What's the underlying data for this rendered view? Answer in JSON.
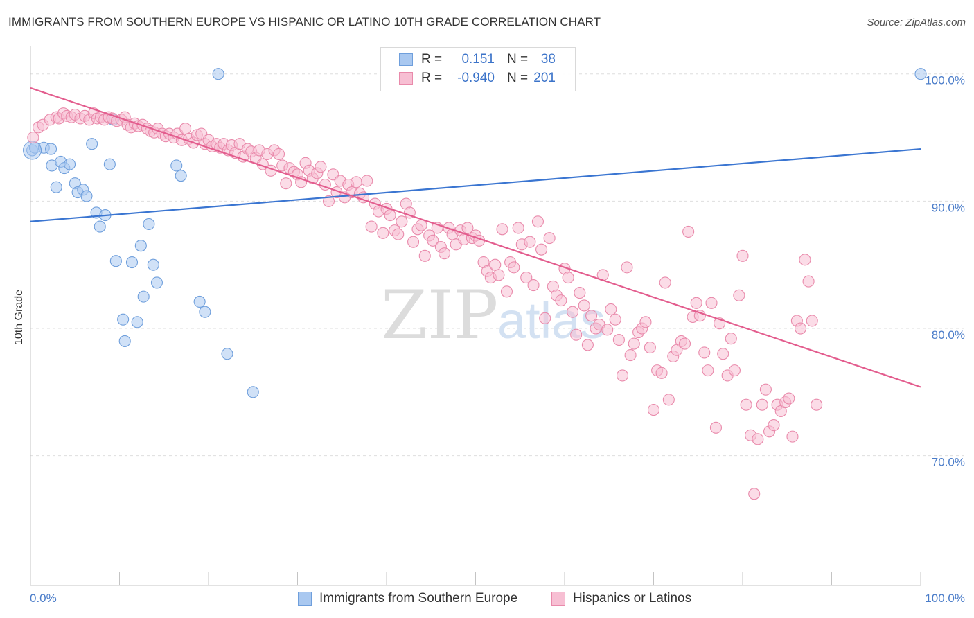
{
  "header": {
    "title": "IMMIGRANTS FROM SOUTHERN EUROPE VS HISPANIC OR LATINO 10TH GRADE CORRELATION CHART",
    "source": "Source: ZipAtlas.com"
  },
  "watermark": {
    "zip": "ZIP",
    "atlas": "atlas"
  },
  "legend": {
    "rows": [
      {
        "r_label": "R =",
        "r_value": "0.151",
        "n_label": "N =",
        "n_value": "38",
        "color": "#a9c8f0",
        "border": "#6f9fdc"
      },
      {
        "r_label": "R =",
        "r_value": "-0.940",
        "n_label": "N =",
        "n_value": "201",
        "color": "#f7bfd3",
        "border": "#e98aab"
      }
    ]
  },
  "bottom_legend": {
    "items": [
      {
        "label": "Immigrants from Southern Europe",
        "color": "#a9c8f0",
        "border": "#6f9fdc"
      },
      {
        "label": "Hispanics or Latinos",
        "color": "#f7bfd3",
        "border": "#e98aab"
      }
    ]
  },
  "chart_data": {
    "type": "scatter",
    "title": "IMMIGRANTS FROM SOUTHERN EUROPE VS HISPANIC OR LATINO 10TH GRADE CORRELATION CHART",
    "ylabel": "10th Grade",
    "xlabel": "",
    "xlim": [
      0,
      100
    ],
    "ylim": [
      59.8,
      102
    ],
    "x_tick_labels": [
      "0.0%",
      "100.0%"
    ],
    "y_ticks": [
      {
        "value": 100,
        "label": "100.0%"
      },
      {
        "value": 90,
        "label": "90.0%"
      },
      {
        "value": 80,
        "label": "80.0%"
      },
      {
        "value": 70,
        "label": "70.0%"
      }
    ],
    "grid": "horizontal dashed",
    "series": [
      {
        "name": "Immigrants from Southern Europe",
        "color": "#a9c8f0",
        "edge": "#6f9fdc",
        "line_color": "#3a75d1",
        "trend": {
          "x": [
            0,
            100
          ],
          "y": [
            88.4,
            94.1
          ]
        },
        "points": [
          [
            0.2,
            94.0
          ],
          [
            0.5,
            94.2
          ],
          [
            1.5,
            94.2
          ],
          [
            2.3,
            94.1
          ],
          [
            2.4,
            92.8
          ],
          [
            2.9,
            91.1
          ],
          [
            3.4,
            93.1
          ],
          [
            3.8,
            92.6
          ],
          [
            4.4,
            92.9
          ],
          [
            5.0,
            91.4
          ],
          [
            5.3,
            90.7
          ],
          [
            5.9,
            90.9
          ],
          [
            6.3,
            90.4
          ],
          [
            6.9,
            94.5
          ],
          [
            7.4,
            89.1
          ],
          [
            7.8,
            88.0
          ],
          [
            8.4,
            88.9
          ],
          [
            8.9,
            92.9
          ],
          [
            9.3,
            96.4
          ],
          [
            9.6,
            85.3
          ],
          [
            10.4,
            80.7
          ],
          [
            10.6,
            79.0
          ],
          [
            11.4,
            85.2
          ],
          [
            12.0,
            80.5
          ],
          [
            12.4,
            86.5
          ],
          [
            12.7,
            82.5
          ],
          [
            13.3,
            88.2
          ],
          [
            13.8,
            85.0
          ],
          [
            14.2,
            83.6
          ],
          [
            16.4,
            92.8
          ],
          [
            16.9,
            92.0
          ],
          [
            19.0,
            82.1
          ],
          [
            19.6,
            81.3
          ],
          [
            21.1,
            100.0
          ],
          [
            22.1,
            78.0
          ],
          [
            25.0,
            75.0
          ],
          [
            100.0,
            100.0
          ]
        ]
      },
      {
        "name": "Hispanics or Latinos",
        "color": "#f7bfd3",
        "edge": "#e98aab",
        "line_color": "#e35d8e",
        "trend": {
          "x": [
            0,
            100
          ],
          "y": [
            98.9,
            75.4
          ]
        },
        "points": [
          [
            0.3,
            95.0
          ],
          [
            0.9,
            95.8
          ],
          [
            1.4,
            96.0
          ],
          [
            2.2,
            96.4
          ],
          [
            2.9,
            96.6
          ],
          [
            3.2,
            96.5
          ],
          [
            3.7,
            96.9
          ],
          [
            4.1,
            96.7
          ],
          [
            4.6,
            96.6
          ],
          [
            5.0,
            96.8
          ],
          [
            5.6,
            96.5
          ],
          [
            6.1,
            96.7
          ],
          [
            6.6,
            96.4
          ],
          [
            7.1,
            96.9
          ],
          [
            7.5,
            96.5
          ],
          [
            7.9,
            96.6
          ],
          [
            8.3,
            96.4
          ],
          [
            8.8,
            96.6
          ],
          [
            9.2,
            96.5
          ],
          [
            9.7,
            96.3
          ],
          [
            10.2,
            96.4
          ],
          [
            10.6,
            96.6
          ],
          [
            10.9,
            96.0
          ],
          [
            11.3,
            95.8
          ],
          [
            11.7,
            96.1
          ],
          [
            12.1,
            95.9
          ],
          [
            12.6,
            96.0
          ],
          [
            13.1,
            95.7
          ],
          [
            13.5,
            95.5
          ],
          [
            13.9,
            95.4
          ],
          [
            14.3,
            95.7
          ],
          [
            14.8,
            95.3
          ],
          [
            15.2,
            95.1
          ],
          [
            15.6,
            95.3
          ],
          [
            16.1,
            95.0
          ],
          [
            16.5,
            95.3
          ],
          [
            17.0,
            94.8
          ],
          [
            17.4,
            95.7
          ],
          [
            17.8,
            94.9
          ],
          [
            18.3,
            94.6
          ],
          [
            18.7,
            95.2
          ],
          [
            19.2,
            95.3
          ],
          [
            19.6,
            94.5
          ],
          [
            20.0,
            94.8
          ],
          [
            20.4,
            94.3
          ],
          [
            20.9,
            94.5
          ],
          [
            21.3,
            94.2
          ],
          [
            21.7,
            94.5
          ],
          [
            22.2,
            94.0
          ],
          [
            22.6,
            94.4
          ],
          [
            23.0,
            93.8
          ],
          [
            23.5,
            94.5
          ],
          [
            23.9,
            93.5
          ],
          [
            24.4,
            94.1
          ],
          [
            24.8,
            93.9
          ],
          [
            25.3,
            93.4
          ],
          [
            25.7,
            94.0
          ],
          [
            26.1,
            92.9
          ],
          [
            26.6,
            93.7
          ],
          [
            27.0,
            92.4
          ],
          [
            27.4,
            94.0
          ],
          [
            27.9,
            93.7
          ],
          [
            28.3,
            92.8
          ],
          [
            28.7,
            91.4
          ],
          [
            29.1,
            92.6
          ],
          [
            29.6,
            92.3
          ],
          [
            30.0,
            92.1
          ],
          [
            30.4,
            91.5
          ],
          [
            30.9,
            93.0
          ],
          [
            31.3,
            92.4
          ],
          [
            31.7,
            91.8
          ],
          [
            32.2,
            92.2
          ],
          [
            32.6,
            92.7
          ],
          [
            33.1,
            91.3
          ],
          [
            33.5,
            90.0
          ],
          [
            34.0,
            92.1
          ],
          [
            34.4,
            90.7
          ],
          [
            34.8,
            91.6
          ],
          [
            35.3,
            90.3
          ],
          [
            35.7,
            91.3
          ],
          [
            36.1,
            90.7
          ],
          [
            36.6,
            91.5
          ],
          [
            37.0,
            90.6
          ],
          [
            37.4,
            90.3
          ],
          [
            37.8,
            91.6
          ],
          [
            38.3,
            88.0
          ],
          [
            38.7,
            89.8
          ],
          [
            39.1,
            89.2
          ],
          [
            39.6,
            87.5
          ],
          [
            40.0,
            89.4
          ],
          [
            40.4,
            88.9
          ],
          [
            40.9,
            87.7
          ],
          [
            41.3,
            87.4
          ],
          [
            41.7,
            88.4
          ],
          [
            42.2,
            89.8
          ],
          [
            42.6,
            89.1
          ],
          [
            43.0,
            86.8
          ],
          [
            43.5,
            87.8
          ],
          [
            43.9,
            88.1
          ],
          [
            44.3,
            85.7
          ],
          [
            44.8,
            87.3
          ],
          [
            45.2,
            86.9
          ],
          [
            45.7,
            87.9
          ],
          [
            46.1,
            86.4
          ],
          [
            46.5,
            85.9
          ],
          [
            47.0,
            87.9
          ],
          [
            47.4,
            87.4
          ],
          [
            47.8,
            86.6
          ],
          [
            48.3,
            87.7
          ],
          [
            48.7,
            87.0
          ],
          [
            49.1,
            87.9
          ],
          [
            49.6,
            87.1
          ],
          [
            50.0,
            87.3
          ],
          [
            50.4,
            86.9
          ],
          [
            50.9,
            85.2
          ],
          [
            51.3,
            84.5
          ],
          [
            51.7,
            84.0
          ],
          [
            52.2,
            85.0
          ],
          [
            52.6,
            84.2
          ],
          [
            53.0,
            87.8
          ],
          [
            53.5,
            82.9
          ],
          [
            53.9,
            85.2
          ],
          [
            54.3,
            84.8
          ],
          [
            54.8,
            87.9
          ],
          [
            55.2,
            86.6
          ],
          [
            55.7,
            84.0
          ],
          [
            56.1,
            86.8
          ],
          [
            56.5,
            83.4
          ],
          [
            57.0,
            88.4
          ],
          [
            57.4,
            86.2
          ],
          [
            57.8,
            80.8
          ],
          [
            58.3,
            87.1
          ],
          [
            58.7,
            83.3
          ],
          [
            59.1,
            82.6
          ],
          [
            59.6,
            82.2
          ],
          [
            60.0,
            84.7
          ],
          [
            60.4,
            84.0
          ],
          [
            60.9,
            81.3
          ],
          [
            61.3,
            79.5
          ],
          [
            61.7,
            82.8
          ],
          [
            62.2,
            81.8
          ],
          [
            62.6,
            78.7
          ],
          [
            63.0,
            81.0
          ],
          [
            63.5,
            80.0
          ],
          [
            63.9,
            80.3
          ],
          [
            64.3,
            84.2
          ],
          [
            64.8,
            79.9
          ],
          [
            65.2,
            81.5
          ],
          [
            65.7,
            80.7
          ],
          [
            66.1,
            79.1
          ],
          [
            66.5,
            76.3
          ],
          [
            67.0,
            84.8
          ],
          [
            67.4,
            77.9
          ],
          [
            67.8,
            78.8
          ],
          [
            68.3,
            79.7
          ],
          [
            68.7,
            80.0
          ],
          [
            69.1,
            80.5
          ],
          [
            69.6,
            78.5
          ],
          [
            70.0,
            73.6
          ],
          [
            70.4,
            76.7
          ],
          [
            70.9,
            76.5
          ],
          [
            71.3,
            83.6
          ],
          [
            71.7,
            74.4
          ],
          [
            72.2,
            77.8
          ],
          [
            72.6,
            78.3
          ],
          [
            73.1,
            79.0
          ],
          [
            73.5,
            78.8
          ],
          [
            73.9,
            87.6
          ],
          [
            74.4,
            80.9
          ],
          [
            74.8,
            82.0
          ],
          [
            75.2,
            81.0
          ],
          [
            75.7,
            78.1
          ],
          [
            76.1,
            76.7
          ],
          [
            76.5,
            82.0
          ],
          [
            77.0,
            72.2
          ],
          [
            77.4,
            80.4
          ],
          [
            77.8,
            78.0
          ],
          [
            78.3,
            76.3
          ],
          [
            78.7,
            79.2
          ],
          [
            79.1,
            76.7
          ],
          [
            79.6,
            82.6
          ],
          [
            80.0,
            85.7
          ],
          [
            80.4,
            74.0
          ],
          [
            80.9,
            71.6
          ],
          [
            81.3,
            67.0
          ],
          [
            81.7,
            71.3
          ],
          [
            82.2,
            74.0
          ],
          [
            82.6,
            75.2
          ],
          [
            83.0,
            71.9
          ],
          [
            83.5,
            72.4
          ],
          [
            83.9,
            74.0
          ],
          [
            84.3,
            73.5
          ],
          [
            84.8,
            74.2
          ],
          [
            85.2,
            74.5
          ],
          [
            85.6,
            71.5
          ],
          [
            86.1,
            80.6
          ],
          [
            86.5,
            80.0
          ],
          [
            87.0,
            85.4
          ],
          [
            87.4,
            83.7
          ],
          [
            87.8,
            80.6
          ],
          [
            88.3,
            74.0
          ]
        ]
      }
    ]
  }
}
